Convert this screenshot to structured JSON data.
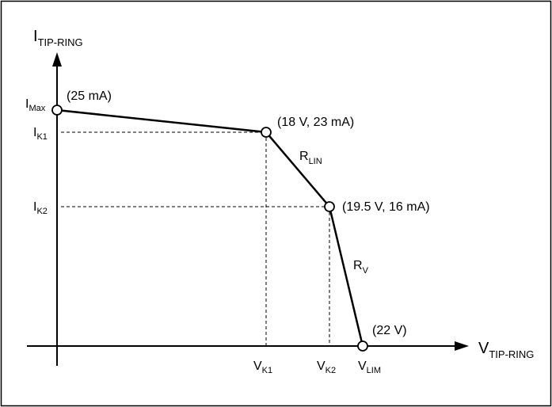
{
  "chart_data": {
    "type": "line",
    "xlabel": {
      "main": "V",
      "sub": "TIP-RING"
    },
    "ylabel": {
      "main": "I",
      "sub": "TIP-RING"
    },
    "grid": false,
    "series": [
      {
        "x": [
          0,
          18,
          19.5,
          22
        ],
        "y": [
          25,
          23,
          16,
          0
        ]
      }
    ],
    "points": [
      {
        "x": 0,
        "y": 25,
        "label": "(25 mA)"
      },
      {
        "x": 18,
        "y": 23,
        "label": "(18 V, 23 mA)"
      },
      {
        "x": 19.5,
        "y": 16,
        "label": "(19.5 V, 16 mA)"
      },
      {
        "x": 22,
        "y": 0,
        "label": "(22 V)"
      }
    ],
    "y_markers": [
      {
        "main": "I",
        "sub": "Max"
      },
      {
        "main": "I",
        "sub": "K1"
      },
      {
        "main": "I",
        "sub": "K2"
      }
    ],
    "x_markers": [
      {
        "main": "V",
        "sub": "K1"
      },
      {
        "main": "V",
        "sub": "K2"
      },
      {
        "main": "V",
        "sub": "LIM"
      }
    ],
    "segment_labels": [
      {
        "main": "R",
        "sub": "LIN"
      },
      {
        "main": "R",
        "sub": "V"
      }
    ]
  }
}
